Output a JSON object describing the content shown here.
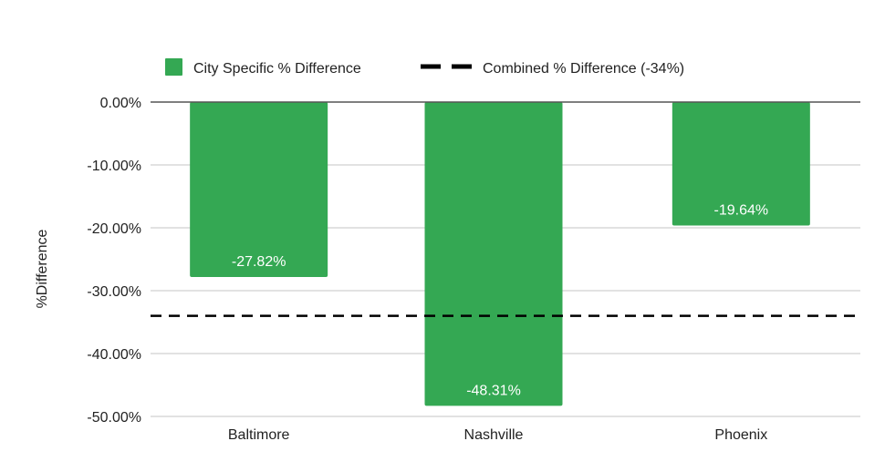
{
  "chart_data": {
    "type": "bar",
    "title": "",
    "xlabel": "",
    "ylabel": "%Difference",
    "ylim": [
      -50,
      0
    ],
    "yticks": [
      0,
      -10,
      -20,
      -30,
      -40,
      -50
    ],
    "ytick_labels": [
      "0.00%",
      "-10.00%",
      "-20.00%",
      "-30.00%",
      "-40.00%",
      "-50.00%"
    ],
    "categories": [
      "Baltimore",
      "Nashville",
      "Phoenix"
    ],
    "series": [
      {
        "name": "City Specific % Difference",
        "values": [
          -27.82,
          -48.31,
          -19.64
        ],
        "labels": [
          "-27.82%",
          "-48.31%",
          "-19.64%"
        ],
        "color": "#34a853"
      }
    ],
    "reference_line": {
      "name": "Combined % Difference (-34%)",
      "value": -34,
      "style": "dashed",
      "color": "#000000"
    },
    "legend": {
      "position": "top",
      "entries": [
        "City Specific % Difference",
        "Combined % Difference (-34%)"
      ]
    },
    "grid": true
  }
}
